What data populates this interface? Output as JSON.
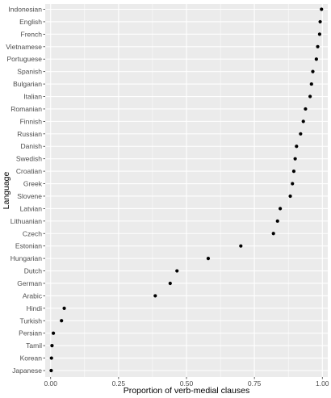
{
  "chart_data": {
    "type": "scatter",
    "xlabel": "Proportion of verb-medial clauses",
    "ylabel": "Language",
    "xlim": [
      -0.02,
      1.02
    ],
    "x_ticks": [
      0.0,
      0.25,
      0.5,
      0.75,
      1.0
    ],
    "x_tick_labels": [
      "0.00",
      "0.25",
      "0.50",
      "0.75",
      "1.00"
    ],
    "grid": true,
    "legend": "none",
    "colors": {
      "panel": "#ebebeb",
      "grid": "#ffffff",
      "point": "#000000"
    },
    "categories": [
      "Indonesian",
      "English",
      "French",
      "Vietnamese",
      "Portuguese",
      "Spanish",
      "Bulgarian",
      "Italian",
      "Romanian",
      "Finnish",
      "Russian",
      "Danish",
      "Swedish",
      "Croatian",
      "Greek",
      "Slovene",
      "Latvian",
      "Lithuanian",
      "Czech",
      "Estonian",
      "Hungarian",
      "Dutch",
      "German",
      "Arabic",
      "Hindi",
      "Turkish",
      "Persian",
      "Tamil",
      "Korean",
      "Japanese"
    ],
    "values": [
      0.997,
      0.992,
      0.99,
      0.983,
      0.978,
      0.965,
      0.96,
      0.955,
      0.938,
      0.93,
      0.92,
      0.905,
      0.9,
      0.895,
      0.89,
      0.882,
      0.845,
      0.835,
      0.82,
      0.7,
      0.58,
      0.465,
      0.44,
      0.385,
      0.05,
      0.04,
      0.01,
      0.005,
      0.003,
      0.002
    ]
  }
}
